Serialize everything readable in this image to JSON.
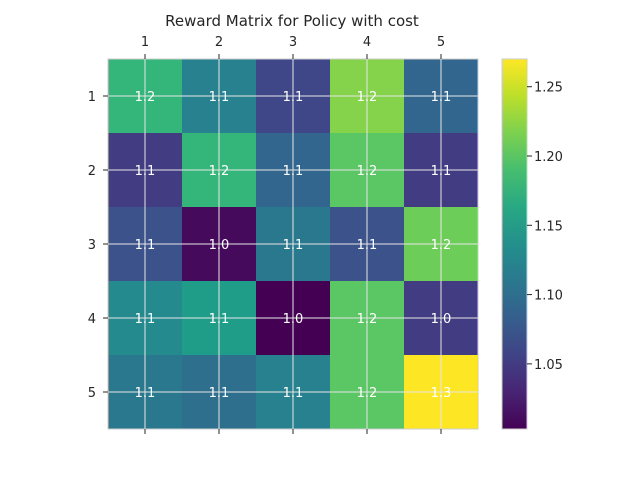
{
  "chart_data": {
    "type": "heatmap",
    "title": "Reward Matrix for Policy with cost",
    "x_ticks": [
      "1",
      "2",
      "3",
      "4",
      "5"
    ],
    "y_ticks": [
      "1",
      "2",
      "3",
      "4",
      "5"
    ],
    "x_axis_position": "top",
    "values": [
      [
        1.18,
        1.12,
        1.06,
        1.22,
        1.09
      ],
      [
        1.05,
        1.18,
        1.09,
        1.2,
        1.05
      ],
      [
        1.07,
        1.01,
        1.11,
        1.07,
        1.21
      ],
      [
        1.13,
        1.15,
        1.0,
        1.2,
        1.05
      ],
      [
        1.11,
        1.1,
        1.12,
        1.2,
        1.27
      ]
    ],
    "labels": [
      [
        "1.2",
        "1.1",
        "1.1",
        "1.2",
        "1.1"
      ],
      [
        "1.1",
        "1.2",
        "1.1",
        "1.2",
        "1.1"
      ],
      [
        "1.1",
        "1.0",
        "1.1",
        "1.1",
        "1.2"
      ],
      [
        "1.1",
        "1.1",
        "1.0",
        "1.2",
        "1.0"
      ],
      [
        "1.1",
        "1.1",
        "1.1",
        "1.2",
        "1.3"
      ]
    ],
    "colormap": "viridis",
    "vmin": 1.003,
    "vmax": 1.27,
    "colorbar_ticks": [
      "1.05",
      "1.10",
      "1.15",
      "1.20",
      "1.25"
    ],
    "grid": true,
    "colorbar": "right"
  }
}
